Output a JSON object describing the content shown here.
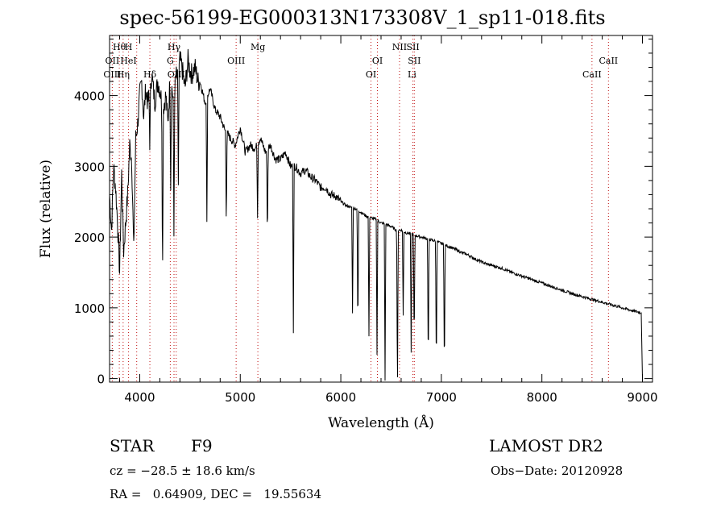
{
  "chart_data": {
    "type": "line",
    "title": "spec-56199-EG000313N173308V_1_sp11-018.fits",
    "xlabel": "Wavelength (Å)",
    "ylabel": "Flux (relative)",
    "xlim": [
      3700,
      9100
    ],
    "ylim": [
      -50,
      4850
    ],
    "xticks": [
      "4000",
      "5000",
      "6000",
      "7000",
      "8000",
      "9000"
    ],
    "yticks": [
      "0",
      "1000",
      "2000",
      "3000",
      "4000"
    ],
    "grid": false,
    "series": [
      {
        "x": [
          3700,
          3720,
          3740,
          3760,
          3780,
          3800,
          3820,
          3840,
          3860,
          3880,
          3900,
          3920,
          3940,
          3960,
          3980,
          4000,
          4020,
          4040,
          4060,
          4080,
          4100,
          4120,
          4150,
          4180,
          4200,
          4230,
          4260,
          4280,
          4300,
          4320,
          4340,
          4360,
          4380,
          4400,
          4420,
          4450,
          4480,
          4500,
          4520,
          4550,
          4580,
          4600,
          4650,
          4700,
          4750,
          4800,
          4850,
          4900,
          4950,
          5000,
          5050,
          5100,
          5150,
          5200,
          5250,
          5300,
          5350,
          5400,
          5450,
          5500,
          5550,
          5600,
          5650,
          5700,
          5750,
          5800,
          5850,
          5900,
          5950,
          6000,
          6050,
          6100,
          6150,
          6200,
          6250,
          6300,
          6350,
          6400,
          6450,
          6500,
          6550,
          6600,
          6650,
          6700,
          6750,
          6800,
          6850,
          6900,
          6950,
          7000,
          7050,
          7100,
          7150,
          7200,
          7250,
          7300,
          7350,
          7400,
          7450,
          7500,
          7600,
          7700,
          7800,
          7900,
          8000,
          8100,
          8200,
          8300,
          8400,
          8500,
          8600,
          8700,
          8800,
          8900,
          8990,
          9000
        ],
        "y": [
          2600,
          2100,
          3000,
          2700,
          2200,
          1500,
          2900,
          1800,
          2200,
          2600,
          3300,
          3100,
          1800,
          3400,
          3600,
          4000,
          4200,
          3700,
          4100,
          3900,
          4050,
          4300,
          3900,
          4200,
          4100,
          3800,
          4000,
          3600,
          4200,
          4100,
          3900,
          4300,
          4200,
          4500,
          4400,
          4100,
          4500,
          4350,
          4300,
          4400,
          4200,
          4200,
          3900,
          4100,
          3800,
          3700,
          3500,
          3400,
          3300,
          3550,
          3200,
          3300,
          3250,
          3400,
          3200,
          3300,
          3100,
          3100,
          3200,
          3000,
          3000,
          2900,
          2950,
          2850,
          2800,
          2700,
          2700,
          2600,
          2580,
          2500,
          2450,
          2420,
          2400,
          2350,
          2300,
          2270,
          2250,
          2200,
          2180,
          2150,
          2100,
          2100,
          2060,
          2050,
          2020,
          2000,
          1980,
          1960,
          1940,
          1910,
          1880,
          1850,
          1820,
          1780,
          1760,
          1720,
          1680,
          1650,
          1620,
          1600,
          1560,
          1500,
          1450,
          1400,
          1350,
          1300,
          1250,
          1200,
          1160,
          1120,
          1080,
          1040,
          1000,
          960,
          930,
          0
        ]
      }
    ],
    "absorption_lines": [
      {
        "x": 4101,
        "depth": 800
      },
      {
        "x": 4227,
        "depth": 2500
      },
      {
        "x": 4308,
        "depth": 1400
      },
      {
        "x": 4340,
        "depth": 1900
      },
      {
        "x": 4384,
        "depth": 1500
      },
      {
        "x": 4668,
        "depth": 1800
      },
      {
        "x": 4861,
        "depth": 1300
      },
      {
        "x": 5172,
        "depth": 1000
      },
      {
        "x": 5270,
        "depth": 1300
      },
      {
        "x": 5528,
        "depth": 2300
      },
      {
        "x": 6116,
        "depth": 1500
      },
      {
        "x": 6170,
        "depth": 1800
      },
      {
        "x": 6280,
        "depth": 1700
      },
      {
        "x": 6360,
        "depth": 1900
      },
      {
        "x": 6440,
        "depth": 2200
      },
      {
        "x": 6563,
        "depth": 2400
      },
      {
        "x": 6620,
        "depth": 1200
      },
      {
        "x": 6700,
        "depth": 1700
      },
      {
        "x": 6730,
        "depth": 1600
      },
      {
        "x": 6870,
        "depth": 1900
      },
      {
        "x": 6950,
        "depth": 1900
      },
      {
        "x": 7030,
        "depth": 1900
      }
    ],
    "line_markers": [
      {
        "label": "Hθ",
        "x": 3797,
        "row": 0
      },
      {
        "label": "H",
        "x": 3889,
        "row": 0
      },
      {
        "label": "Hγ",
        "x": 4341,
        "row": 0
      },
      {
        "label": "Mg",
        "x": 5175,
        "row": 0
      },
      {
        "label": "NII",
        "x": 6584,
        "row": 0
      },
      {
        "label": "SII",
        "x": 6717,
        "row": 0
      },
      {
        "label": "OII",
        "x": 3727,
        "row": 1
      },
      {
        "label": "HeI",
        "x": 3888,
        "row": 1
      },
      {
        "label": "G",
        "x": 4304,
        "row": 1
      },
      {
        "label": "OIII",
        "x": 4959,
        "row": 1
      },
      {
        "label": "OI",
        "x": 6364,
        "row": 1
      },
      {
        "label": "SII",
        "x": 6731,
        "row": 1
      },
      {
        "label": "CaII",
        "x": 8662,
        "row": 1
      },
      {
        "label": "OIII",
        "x": 3727,
        "row": 2
      },
      {
        "label": "Hη",
        "x": 3835,
        "row": 2
      },
      {
        "label": "Hδ",
        "x": 4101,
        "row": 2
      },
      {
        "label": "OIII",
        "x": 4363,
        "row": 2
      },
      {
        "label": "OI",
        "x": 6300,
        "row": 2
      },
      {
        "label": "Li",
        "x": 6708,
        "row": 2
      },
      {
        "label": "CaII",
        "x": 8498,
        "row": 2
      }
    ],
    "marker_line_positions": [
      3727,
      3797,
      3835,
      3889,
      3970,
      4101,
      4304,
      4341,
      4363,
      4959,
      5175,
      6300,
      6364,
      6584,
      6717,
      6731,
      8498,
      8662
    ],
    "line_color": "#000000",
    "marker_color": "#c01010"
  },
  "info": {
    "object_type": "STAR",
    "subclass": "F9",
    "survey": "LAMOST DR2",
    "cz": "cz = −28.5 ± 18.6 km/s",
    "obs_date": "Obs−Date: 20120928",
    "coords": "RA =   0.64909, DEC =   19.55634"
  }
}
